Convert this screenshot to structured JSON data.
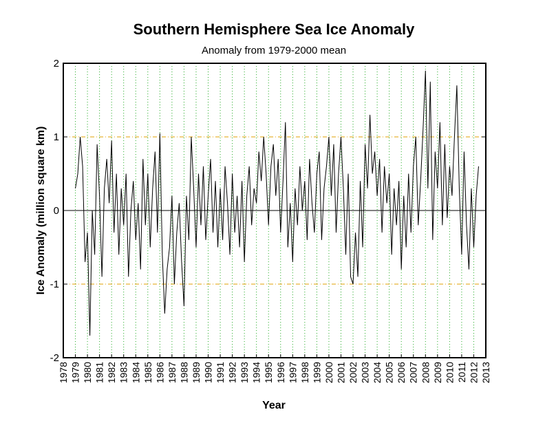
{
  "chart_data": {
    "type": "line",
    "title": "Southern Hemisphere Sea Ice Anomaly",
    "subtitle": "Anomaly from 1979-2000 mean",
    "xlabel": "Year",
    "ylabel": "Ice Anomaly (million square km)",
    "xlim": [
      1978,
      2013
    ],
    "xticks": [
      1978,
      1979,
      1980,
      1981,
      1982,
      1983,
      1984,
      1985,
      1986,
      1987,
      1988,
      1989,
      1990,
      1991,
      1992,
      1993,
      1994,
      1995,
      1996,
      1997,
      1998,
      1999,
      2000,
      2001,
      2002,
      2003,
      2004,
      2005,
      2006,
      2007,
      2008,
      2009,
      2010,
      2011,
      2012,
      2013
    ],
    "ylim": [
      -2,
      2
    ],
    "yticks": [
      -2,
      -1,
      0,
      1,
      2
    ],
    "grid": true,
    "x": [
      1979,
      1979.2,
      1979.4,
      1979.6,
      1979.8,
      1980,
      1980.2,
      1980.4,
      1980.6,
      1980.8,
      1981,
      1981.2,
      1981.4,
      1981.6,
      1981.8,
      1982,
      1982.2,
      1982.4,
      1982.6,
      1982.8,
      1983,
      1983.2,
      1983.4,
      1983.6,
      1983.8,
      1984,
      1984.2,
      1984.4,
      1984.6,
      1984.8,
      1985,
      1985.2,
      1985.4,
      1985.6,
      1985.8,
      1986,
      1986.2,
      1986.4,
      1986.6,
      1986.8,
      1987,
      1987.2,
      1987.4,
      1987.6,
      1987.8,
      1988,
      1988.2,
      1988.4,
      1988.6,
      1988.8,
      1989,
      1989.2,
      1989.4,
      1989.6,
      1989.8,
      1990,
      1990.2,
      1990.4,
      1990.6,
      1990.8,
      1991,
      1991.2,
      1991.4,
      1991.6,
      1991.8,
      1992,
      1992.2,
      1992.4,
      1992.6,
      1992.8,
      1993,
      1993.2,
      1993.4,
      1993.6,
      1993.8,
      1994,
      1994.2,
      1994.4,
      1994.6,
      1994.8,
      1995,
      1995.2,
      1995.4,
      1995.6,
      1995.8,
      1996,
      1996.2,
      1996.4,
      1996.6,
      1996.8,
      1997,
      1997.2,
      1997.4,
      1997.6,
      1997.8,
      1998,
      1998.2,
      1998.4,
      1998.6,
      1998.8,
      1999,
      1999.2,
      1999.4,
      1999.6,
      1999.8,
      2000,
      2000.2,
      2000.4,
      2000.6,
      2000.8,
      2001,
      2001.2,
      2001.4,
      2001.6,
      2001.8,
      2002,
      2002.2,
      2002.4,
      2002.6,
      2002.8,
      2003,
      2003.2,
      2003.4,
      2003.6,
      2003.8,
      2004,
      2004.2,
      2004.4,
      2004.6,
      2004.8,
      2005,
      2005.2,
      2005.4,
      2005.6,
      2005.8,
      2006,
      2006.2,
      2006.4,
      2006.6,
      2006.8,
      2007,
      2007.2,
      2007.4,
      2007.6,
      2007.8,
      2008,
      2008.2,
      2008.4,
      2008.6,
      2008.8,
      2009,
      2009.2,
      2009.4,
      2009.6,
      2009.8,
      2010,
      2010.2,
      2010.4,
      2010.6,
      2010.8,
      2011,
      2011.2,
      2011.4,
      2011.6,
      2011.8,
      2012,
      2012.2,
      2012.4
    ],
    "series": [
      {
        "color": "#000000",
        "values": [
          0.3,
          0.5,
          1.0,
          0.6,
          -0.7,
          -0.3,
          -1.7,
          0.0,
          -0.6,
          0.9,
          0.2,
          -0.9,
          0.3,
          0.7,
          0.1,
          0.95,
          -0.3,
          0.5,
          -0.6,
          0.3,
          -0.2,
          0.5,
          -0.9,
          0.0,
          0.4,
          -0.4,
          0.1,
          -0.8,
          0.7,
          -0.2,
          0.5,
          -0.5,
          0.3,
          0.8,
          -0.3,
          1.05,
          -0.6,
          -1.4,
          -0.8,
          -0.5,
          0.2,
          -1.0,
          -0.3,
          0.1,
          -0.7,
          -1.3,
          0.2,
          -0.4,
          1.0,
          0.3,
          -0.5,
          0.5,
          -0.2,
          0.6,
          -0.4,
          0.2,
          0.7,
          -0.3,
          0.4,
          -0.5,
          0.3,
          -0.4,
          0.6,
          0.1,
          -0.6,
          0.5,
          -0.3,
          0.2,
          -0.5,
          0.4,
          -0.7,
          0.2,
          0.6,
          -0.2,
          0.3,
          0.1,
          0.8,
          0.4,
          1.0,
          0.5,
          -0.2,
          0.6,
          0.9,
          0.2,
          0.7,
          -0.3,
          0.4,
          1.2,
          -0.5,
          0.1,
          -0.7,
          0.3,
          -0.2,
          0.6,
          0.0,
          0.4,
          -0.4,
          0.7,
          0.1,
          -0.3,
          0.5,
          0.8,
          -0.4,
          0.3,
          0.6,
          1.0,
          0.2,
          0.9,
          -0.3,
          0.5,
          1.0,
          0.3,
          -0.6,
          0.5,
          -0.9,
          -1.0,
          -0.3,
          -0.9,
          0.4,
          -0.5,
          0.9,
          0.3,
          1.3,
          0.5,
          0.8,
          0.2,
          0.7,
          -0.3,
          0.6,
          0.1,
          0.5,
          -0.6,
          0.3,
          -0.2,
          0.4,
          -0.8,
          0.2,
          -0.5,
          0.5,
          -0.3,
          0.6,
          1.0,
          -0.2,
          0.4,
          1.1,
          1.9,
          0.3,
          1.75,
          -0.4,
          0.8,
          0.3,
          1.2,
          -0.2,
          0.9,
          -0.1,
          0.6,
          0.2,
          1.0,
          1.7,
          0.3,
          -0.6,
          0.8,
          -0.2,
          -0.8,
          0.3,
          -0.5,
          0.2,
          0.6
        ]
      }
    ]
  }
}
